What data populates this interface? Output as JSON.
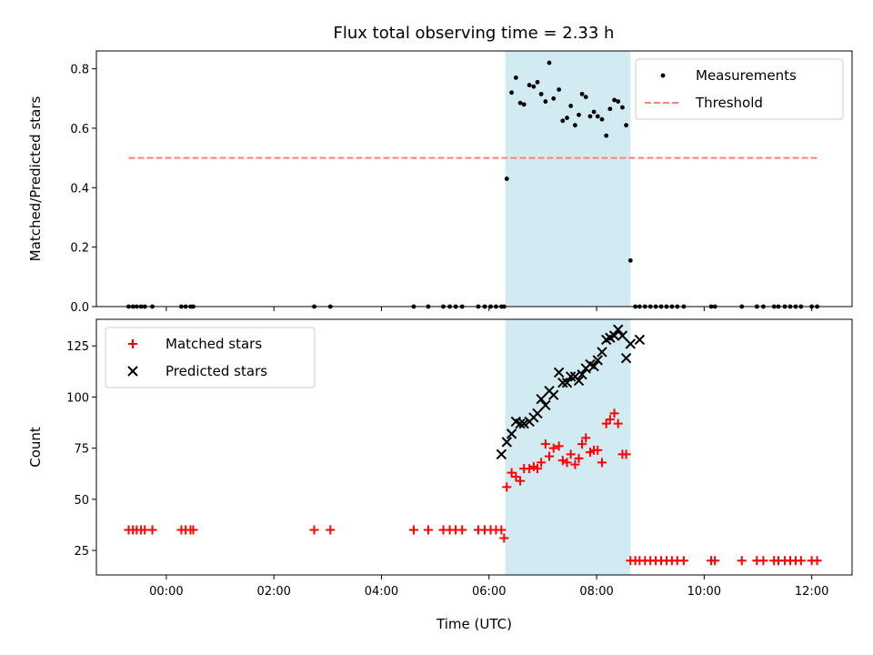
{
  "figure": {
    "title": "Flux total observing time = 2.33 h"
  },
  "chart_data": [
    {
      "type": "scatter",
      "ylabel": "Matched/Predicted stars",
      "xlim": [
        -1.3,
        12.75
      ],
      "ylim": [
        0,
        0.86
      ],
      "x_ticks": [
        0,
        2,
        4,
        6,
        8,
        10,
        12
      ],
      "y_ticks": [
        0.0,
        0.2,
        0.4,
        0.6,
        0.8
      ],
      "y_tick_labels": [
        "0.0",
        "0.2",
        "0.4",
        "0.6",
        "0.8"
      ],
      "legend": {
        "position": "upper right",
        "entries": [
          {
            "name": "Measurements",
            "marker": "dot",
            "color": "#000000"
          },
          {
            "name": "Threshold",
            "marker": "dashed-line",
            "color": "#ff7f7f"
          }
        ]
      },
      "threshold": {
        "value": 0.5,
        "x_range": [
          -0.7,
          12.15
        ],
        "color": "#ff7f7f"
      },
      "shaded_interval": {
        "x_range": [
          6.3,
          8.63
        ],
        "color": "#add8e6"
      },
      "series": [
        {
          "name": "Measurements",
          "x": [
            -0.7,
            -0.62,
            -0.55,
            -0.47,
            -0.4,
            -0.26,
            0.28,
            0.36,
            0.45,
            0.5,
            2.75,
            3.05,
            4.6,
            4.87,
            5.15,
            5.27,
            5.38,
            5.5,
            5.8,
            5.92,
            6.03,
            6.13,
            6.23,
            6.28,
            6.33,
            6.42,
            6.5,
            6.58,
            6.65,
            6.75,
            6.83,
            6.9,
            6.97,
            7.05,
            7.12,
            7.2,
            7.3,
            7.37,
            7.45,
            7.52,
            7.6,
            7.67,
            7.73,
            7.8,
            7.88,
            7.95,
            8.02,
            8.1,
            8.18,
            8.25,
            8.33,
            8.4,
            8.48,
            8.55,
            8.63,
            8.72,
            8.8,
            8.9,
            9.0,
            9.1,
            9.2,
            9.3,
            9.4,
            9.5,
            9.62,
            10.13,
            10.2,
            10.7,
            10.98,
            11.1,
            11.3,
            11.38,
            11.5,
            11.6,
            11.7,
            11.8,
            12.0,
            12.1
          ],
          "y": [
            0,
            0,
            0,
            0,
            0,
            0,
            0,
            0,
            0,
            0,
            0,
            0,
            0,
            0,
            0,
            0,
            0,
            0,
            0,
            0,
            0,
            0,
            0,
            0,
            0.43,
            0.72,
            0.77,
            0.685,
            0.68,
            0.745,
            0.74,
            0.755,
            0.715,
            0.69,
            0.82,
            0.7,
            0.73,
            0.625,
            0.635,
            0.675,
            0.61,
            0.645,
            0.715,
            0.705,
            0.64,
            0.655,
            0.64,
            0.63,
            0.575,
            0.665,
            0.695,
            0.69,
            0.67,
            0.61,
            0.155,
            0,
            0,
            0,
            0,
            0,
            0,
            0,
            0,
            0,
            0,
            0,
            0,
            0,
            0,
            0,
            0,
            0,
            0,
            0,
            0,
            0,
            0,
            0
          ]
        }
      ]
    },
    {
      "type": "scatter",
      "xlabel": "Time (UTC)",
      "ylabel": "Count",
      "xlim": [
        -1.3,
        12.75
      ],
      "ylim": [
        13,
        138
      ],
      "x_ticks": [
        0,
        2,
        4,
        6,
        8,
        10,
        12
      ],
      "x_tick_labels": [
        "00:00",
        "02:00",
        "04:00",
        "06:00",
        "08:00",
        "10:00",
        "12:00"
      ],
      "y_ticks": [
        25,
        50,
        75,
        100,
        125
      ],
      "y_tick_labels": [
        "25",
        "50",
        "75",
        "100",
        "125"
      ],
      "legend": {
        "position": "upper left",
        "entries": [
          {
            "name": "Matched stars",
            "marker": "plus",
            "color": "#ff0000"
          },
          {
            "name": "Predicted stars",
            "marker": "x",
            "color": "#000000"
          }
        ]
      },
      "shaded_interval": {
        "x_range": [
          6.3,
          8.63
        ],
        "color": "#add8e6"
      },
      "series": [
        {
          "name": "Matched stars",
          "x": [
            -0.7,
            -0.62,
            -0.55,
            -0.47,
            -0.4,
            -0.26,
            0.28,
            0.36,
            0.45,
            0.5,
            2.75,
            3.05,
            4.6,
            4.87,
            5.15,
            5.27,
            5.38,
            5.5,
            5.8,
            5.92,
            6.03,
            6.13,
            6.23,
            6.28,
            6.33,
            6.42,
            6.5,
            6.58,
            6.65,
            6.75,
            6.83,
            6.9,
            6.97,
            7.05,
            7.12,
            7.2,
            7.3,
            7.37,
            7.45,
            7.52,
            7.6,
            7.67,
            7.73,
            7.8,
            7.88,
            7.95,
            8.02,
            8.1,
            8.18,
            8.25,
            8.33,
            8.4,
            8.48,
            8.55,
            8.63,
            8.72,
            8.8,
            8.9,
            9.0,
            9.1,
            9.2,
            9.3,
            9.4,
            9.5,
            9.62,
            10.13,
            10.2,
            10.7,
            10.98,
            11.1,
            11.3,
            11.38,
            11.5,
            11.6,
            11.7,
            11.8,
            12.0,
            12.1
          ],
          "y": [
            35,
            35,
            35,
            35,
            35,
            35,
            35,
            35,
            35,
            35,
            35,
            35,
            35,
            35,
            35,
            35,
            35,
            35,
            35,
            35,
            35,
            35,
            35,
            31,
            56,
            63,
            61,
            59,
            65,
            65,
            66,
            65,
            68,
            77,
            71,
            75,
            76,
            69,
            68,
            72,
            67,
            70,
            77,
            80,
            73,
            74,
            74,
            68,
            87,
            89,
            92,
            87,
            72,
            72,
            20,
            20,
            20,
            20,
            20,
            20,
            20,
            20,
            20,
            20,
            20,
            20,
            20,
            20,
            20,
            20,
            20,
            20,
            20,
            20,
            20,
            20,
            20,
            20
          ]
        },
        {
          "name": "Predicted stars",
          "x": [
            6.23,
            6.33,
            6.42,
            6.5,
            6.58,
            6.65,
            6.75,
            6.83,
            6.9,
            6.97,
            7.05,
            7.12,
            7.2,
            7.3,
            7.37,
            7.45,
            7.52,
            7.6,
            7.67,
            7.73,
            7.8,
            7.88,
            7.95,
            8.02,
            8.1,
            8.18,
            8.25,
            8.33,
            8.4,
            8.48,
            8.55,
            8.63,
            8.8
          ],
          "y": [
            72,
            78,
            82,
            88,
            87,
            87,
            88,
            90,
            92,
            99,
            96,
            103,
            101,
            112,
            107,
            107,
            110,
            110,
            108,
            111,
            114,
            116,
            115,
            118,
            122,
            128,
            129,
            130,
            133,
            130,
            119,
            126,
            128
          ]
        }
      ]
    }
  ]
}
